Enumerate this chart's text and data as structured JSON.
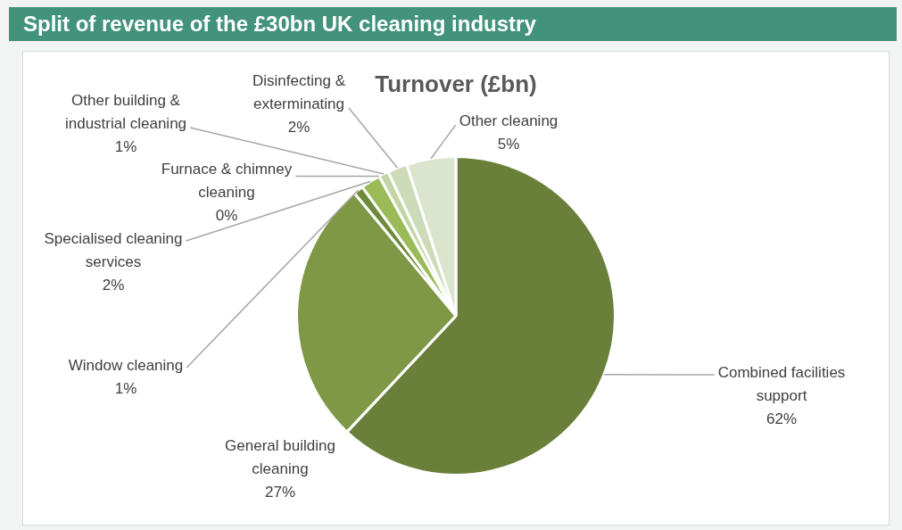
{
  "chart_data": {
    "type": "pie",
    "title": "Split of revenue of the £30bn UK cleaning industry",
    "subtitle": "Turnover (£bn)",
    "categories": [
      "Combined facilities support",
      "General building cleaning",
      "Window cleaning",
      "Specialised cleaning services",
      "Furnace & chimney cleaning",
      "Other building & industrial cleaning",
      "Disinfecting & exterminating",
      "Other cleaning"
    ],
    "values": [
      62,
      27,
      1,
      2,
      0,
      1,
      2,
      5
    ],
    "colors": [
      "#6a7f3a",
      "#7e9845",
      "#6f8a3b",
      "#9bbb59",
      "#b0c88a",
      "#c3d5a4",
      "#cddbb8",
      "#dbe4cd"
    ],
    "value_labels": [
      "62%",
      "27%",
      "1%",
      "2%",
      "0%",
      "1%",
      "2%",
      "5%"
    ],
    "legend": false
  }
}
